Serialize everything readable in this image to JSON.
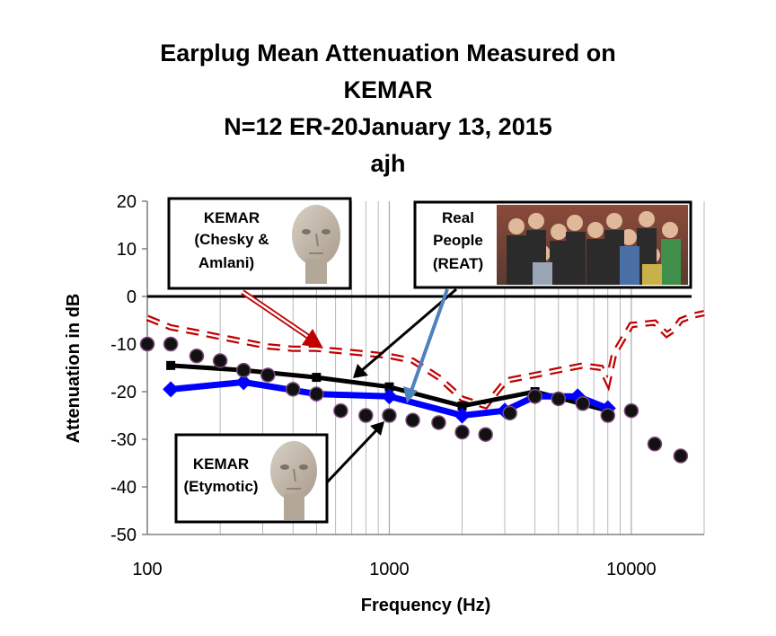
{
  "title_lines": [
    "Earplug Mean Attenuation Measured on",
    "KEMAR",
    "N=12 ER-20January 13, 2015",
    "ajh"
  ],
  "chart_data": {
    "type": "line",
    "xlabel": "Frequency (Hz)",
    "ylabel": "Attenuation in dB",
    "xscale": "log",
    "xlim": [
      100,
      20000
    ],
    "ylim": [
      -50,
      20
    ],
    "x_ticks": [
      "100",
      "1000",
      "10000"
    ],
    "y_ticks": [
      "20",
      "10",
      "0",
      "-10",
      "-20",
      "-30",
      "-40",
      "-50"
    ],
    "grid": "vertical log gridlines",
    "series": [
      {
        "style": "dashed-red",
        "color": "#c00000",
        "x": [
          100,
          125,
          160,
          200,
          250,
          315,
          400,
          500,
          630,
          800,
          1000,
          1250,
          1600,
          2000,
          2500,
          3000,
          3150,
          4000,
          5000,
          6300,
          7500,
          8000,
          8500,
          10000,
          12500,
          14000,
          15000,
          16000,
          18000,
          20000
        ],
        "y": [
          -4.5,
          -6.5,
          -7.5,
          -8.5,
          -9.5,
          -10.5,
          -11,
          -11,
          -11.5,
          -12,
          -12.5,
          -13.5,
          -17,
          -21.5,
          -23,
          -18,
          -17.5,
          -16.5,
          -15.5,
          -14.5,
          -15,
          -18,
          -12,
          -6,
          -5.5,
          -8,
          -7,
          -5,
          -4,
          -3.5
        ]
      },
      {
        "style": "black-squares",
        "color": "#000000",
        "x": [
          125,
          250,
          500,
          1000,
          2000,
          4000,
          8000
        ],
        "y": [
          -14.5,
          -15.5,
          -17,
          -19,
          -23,
          -20,
          -24
        ]
      },
      {
        "style": "blue-diamonds",
        "color": "#0000ff",
        "x": [
          125,
          250,
          500,
          1000,
          2000,
          3000,
          4000,
          6000,
          8000
        ],
        "y": [
          -19.5,
          -18,
          -20.5,
          -21,
          -25,
          -24,
          -21,
          -21,
          -23.5
        ]
      },
      {
        "style": "black-dots",
        "color": "#000000",
        "x": [
          100,
          125,
          160,
          200,
          250,
          315,
          400,
          500,
          630,
          800,
          1000,
          1250,
          1600,
          2000,
          2500,
          3150,
          4000,
          5000,
          6300,
          8000,
          10000,
          12500,
          16000
        ],
        "y": [
          -10,
          -10,
          -12.5,
          -13.5,
          -15.5,
          -16.5,
          -19.5,
          -20.5,
          -24,
          -25,
          -25,
          -26,
          -26.5,
          -28.5,
          -29,
          -24.5,
          -21,
          -21.5,
          -22.5,
          -25,
          -24,
          -31,
          -33.5
        ]
      }
    ],
    "reference_line": {
      "y": 0
    }
  },
  "callouts": {
    "chesky": {
      "line1": "KEMAR",
      "line2": "(Chesky &",
      "line3": "Amlani)"
    },
    "real_people": {
      "line1": "Real",
      "line2": "People",
      "line3": "(REAT)"
    },
    "etymotic": {
      "line1": "KEMAR",
      "line2": "(Etymotic)"
    }
  }
}
